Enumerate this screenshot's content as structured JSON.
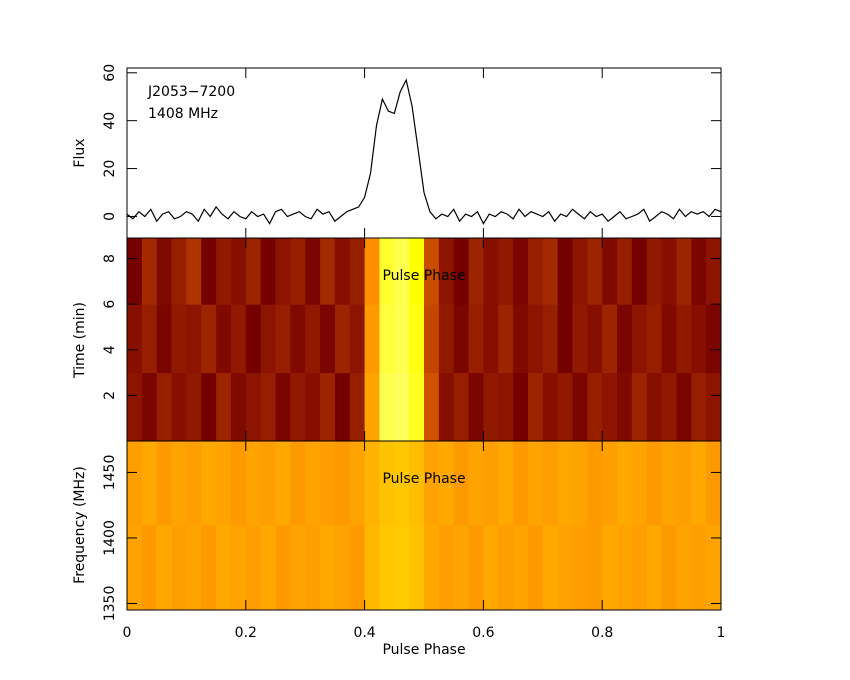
{
  "chart_data": [
    {
      "type": "line",
      "annotations": [
        "J2053−7200",
        "1408 MHz"
      ],
      "ylabel": "Flux",
      "color": "#000000",
      "x": [
        0,
        0.01,
        0.02,
        0.03,
        0.04,
        0.05,
        0.06,
        0.07,
        0.08,
        0.09,
        0.1,
        0.11,
        0.12,
        0.13,
        0.14,
        0.15,
        0.16,
        0.17,
        0.18,
        0.19,
        0.2,
        0.21,
        0.22,
        0.23,
        0.24,
        0.25,
        0.26,
        0.27,
        0.28,
        0.29,
        0.3,
        0.31,
        0.32,
        0.33,
        0.34,
        0.35,
        0.36,
        0.37,
        0.38,
        0.39,
        0.4,
        0.41,
        0.42,
        0.43,
        0.44,
        0.45,
        0.46,
        0.47,
        0.48,
        0.49,
        0.5,
        0.51,
        0.52,
        0.53,
        0.54,
        0.55,
        0.56,
        0.57,
        0.58,
        0.59,
        0.6,
        0.61,
        0.62,
        0.63,
        0.64,
        0.65,
        0.66,
        0.67,
        0.68,
        0.69,
        0.7,
        0.71,
        0.72,
        0.73,
        0.74,
        0.75,
        0.76,
        0.77,
        0.78,
        0.79,
        0.8,
        0.81,
        0.82,
        0.83,
        0.84,
        0.85,
        0.86,
        0.87,
        0.88,
        0.89,
        0.9,
        0.91,
        0.92,
        0.93,
        0.94,
        0.95,
        0.96,
        0.97,
        0.98,
        0.99,
        1
      ],
      "values": [
        1,
        -1,
        2,
        0,
        3,
        -2,
        1,
        2,
        -1,
        0,
        2,
        1,
        -2,
        3,
        0,
        4,
        1,
        -1,
        2,
        0,
        -1,
        2,
        0,
        1,
        -3,
        2,
        3,
        0,
        1,
        2,
        0,
        -1,
        3,
        1,
        2,
        -2,
        0,
        2,
        3,
        4,
        8,
        18,
        38,
        49,
        44,
        43,
        52,
        57,
        46,
        28,
        10,
        2,
        -1,
        1,
        0,
        3,
        -2,
        1,
        0,
        2,
        -3,
        1,
        0,
        2,
        1,
        -1,
        3,
        0,
        2,
        1,
        0,
        2,
        -2,
        1,
        0,
        3,
        1,
        -1,
        2,
        0,
        1,
        -2,
        0,
        2,
        -1,
        0,
        1,
        3,
        -2,
        0,
        2,
        1,
        -1,
        3,
        0,
        2,
        1,
        2,
        0,
        3,
        2
      ],
      "xlim": [
        0,
        1
      ],
      "ylim": [
        -9,
        62
      ],
      "yticks": [
        0,
        20,
        40,
        60
      ],
      "xticks": [
        0,
        0.2,
        0.4,
        0.6,
        0.8,
        1
      ]
    },
    {
      "type": "heatmap",
      "ylabel": "Time (min)",
      "annotation": "Pulse Phase",
      "xlim": [
        0,
        1
      ],
      "ylim": [
        0,
        8.9
      ],
      "ybins": [
        0,
        3,
        6,
        8.9
      ],
      "yticks": [
        2,
        4,
        6,
        8
      ],
      "xticks": [
        0,
        0.2,
        0.4,
        0.6,
        0.8,
        1
      ],
      "z": [
        [
          0.34,
          0.31,
          0.36,
          0.33,
          0.35,
          0.3,
          0.37,
          0.32,
          0.34,
          0.36,
          0.31,
          0.35,
          0.33,
          0.37,
          0.3,
          0.36,
          0.62,
          0.9,
          0.92,
          0.84,
          0.46,
          0.33,
          0.36,
          0.31,
          0.35,
          0.34,
          0.3,
          0.37,
          0.33,
          0.35,
          0.31,
          0.36,
          0.34,
          0.32,
          0.37,
          0.33,
          0.35,
          0.31,
          0.36,
          0.34
        ],
        [
          0.33,
          0.36,
          0.31,
          0.35,
          0.34,
          0.37,
          0.32,
          0.35,
          0.3,
          0.34,
          0.36,
          0.32,
          0.35,
          0.31,
          0.37,
          0.34,
          0.6,
          0.88,
          0.9,
          0.82,
          0.44,
          0.35,
          0.31,
          0.36,
          0.33,
          0.37,
          0.32,
          0.34,
          0.36,
          0.3,
          0.35,
          0.33,
          0.37,
          0.31,
          0.34,
          0.36,
          0.32,
          0.35,
          0.33,
          0.31
        ],
        [
          0.3,
          0.38,
          0.32,
          0.36,
          0.4,
          0.3,
          0.35,
          0.33,
          0.37,
          0.3,
          0.34,
          0.36,
          0.31,
          0.38,
          0.33,
          0.36,
          0.58,
          0.86,
          0.9,
          0.8,
          0.45,
          0.34,
          0.3,
          0.37,
          0.33,
          0.35,
          0.31,
          0.36,
          0.38,
          0.3,
          0.34,
          0.37,
          0.32,
          0.36,
          0.3,
          0.35,
          0.33,
          0.37,
          0.31,
          0.34
        ]
      ]
    },
    {
      "type": "heatmap",
      "ylabel": "Frequency (MHz)",
      "xlabel": "Pulse Phase",
      "annotation": "Pulse Phase",
      "xlim": [
        0,
        1
      ],
      "ylim": [
        1345,
        1474
      ],
      "ybins": [
        1345,
        1410,
        1474
      ],
      "yticks": [
        1350,
        1400,
        1450
      ],
      "xticks": [
        0,
        0.2,
        0.4,
        0.6,
        0.8,
        1
      ],
      "z": [
        [
          0.62,
          0.6,
          0.63,
          0.61,
          0.62,
          0.6,
          0.63,
          0.62,
          0.61,
          0.63,
          0.6,
          0.62,
          0.61,
          0.63,
          0.62,
          0.6,
          0.66,
          0.69,
          0.7,
          0.68,
          0.63,
          0.61,
          0.62,
          0.6,
          0.63,
          0.61,
          0.62,
          0.6,
          0.63,
          0.62,
          0.61,
          0.6,
          0.63,
          0.62,
          0.61,
          0.63,
          0.6,
          0.62,
          0.61,
          0.62
        ],
        [
          0.61,
          0.63,
          0.6,
          0.62,
          0.61,
          0.63,
          0.62,
          0.6,
          0.62,
          0.61,
          0.63,
          0.6,
          0.62,
          0.61,
          0.6,
          0.62,
          0.65,
          0.68,
          0.69,
          0.67,
          0.62,
          0.63,
          0.6,
          0.62,
          0.61,
          0.63,
          0.6,
          0.62,
          0.61,
          0.63,
          0.62,
          0.6,
          0.61,
          0.63,
          0.62,
          0.6,
          0.62,
          0.61,
          0.63,
          0.6
        ]
      ]
    }
  ]
}
